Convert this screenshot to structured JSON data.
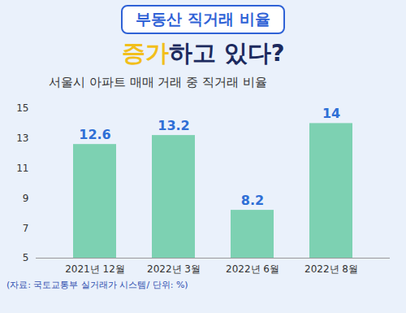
{
  "chart_data": {
    "type": "bar",
    "title": "부동산 직거래 비율",
    "subtitle": "증가하고 있다?",
    "chart_title": "서울시 아파트 매매 거래 중 직거래 비율",
    "caption": "(자료: 국토교통부 실거래가 시스템/ 단위: %)",
    "categories": [
      "2021년 12월",
      "2022년 3월",
      "2022년 6월",
      "2022년 8월"
    ],
    "values": [
      12.6,
      13.2,
      8.2,
      14
    ],
    "color": "#7dd1b2",
    "ylim": [
      5,
      15
    ],
    "yticks": [
      5,
      7,
      9,
      11,
      13,
      15
    ],
    "grid": false,
    "data_labels": true
  }
}
